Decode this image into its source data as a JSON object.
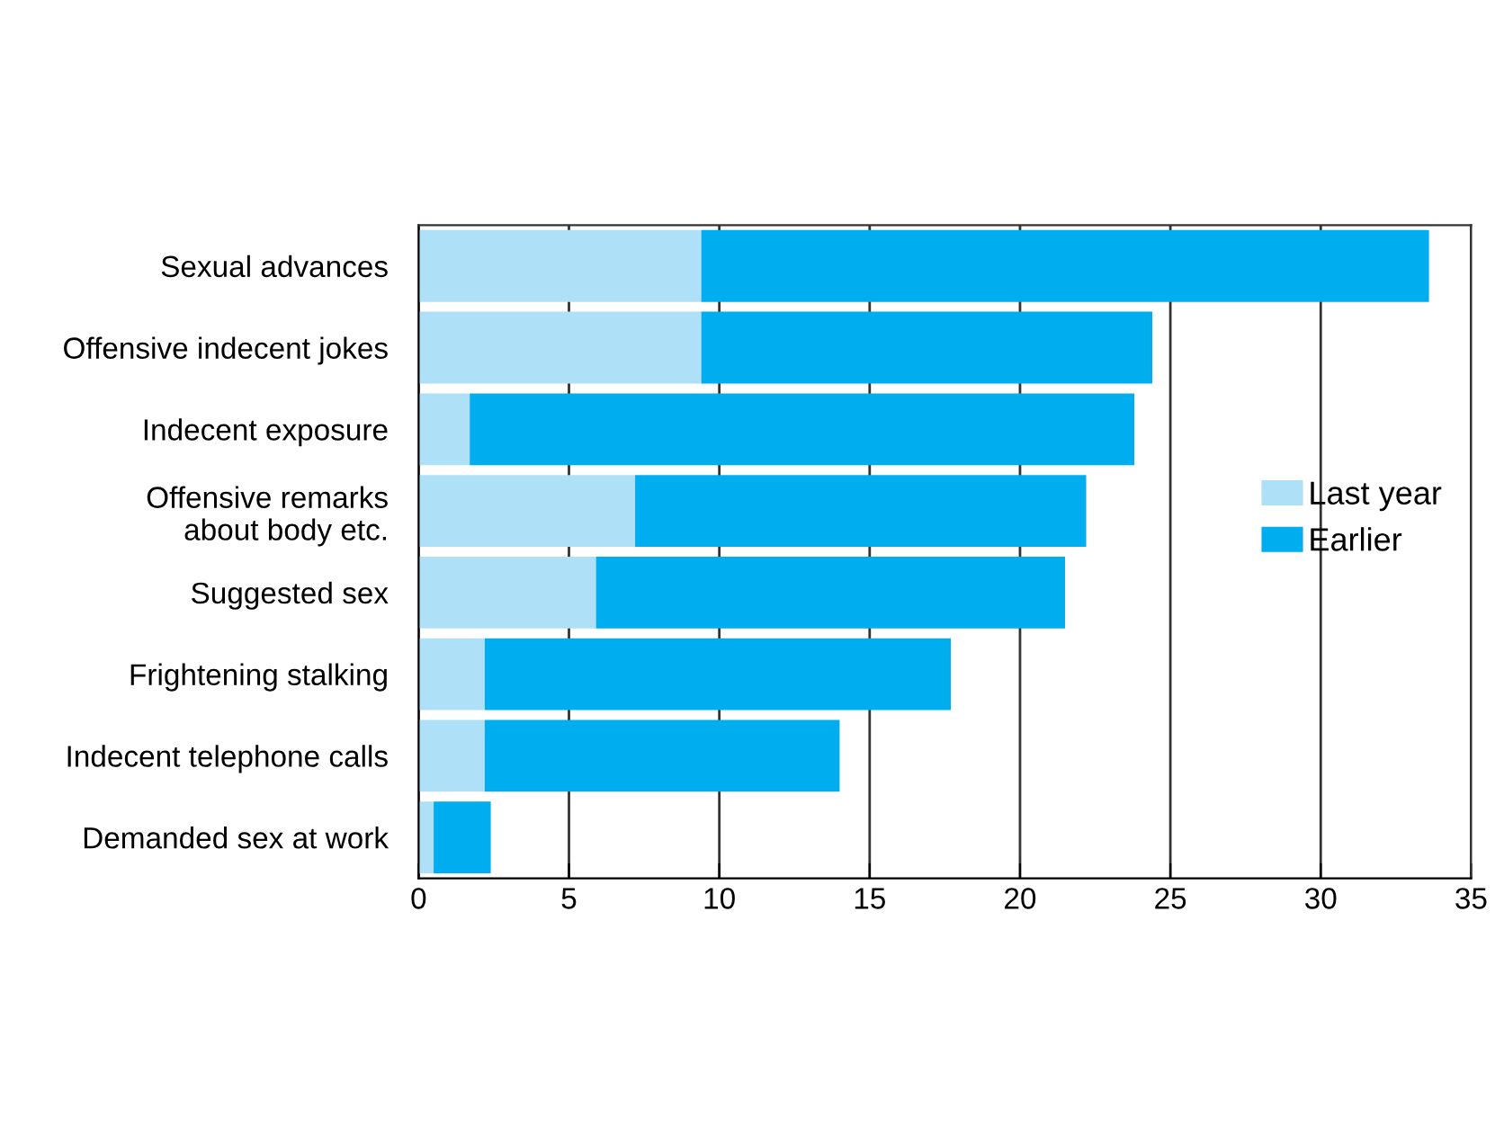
{
  "chart_data": {
    "type": "bar",
    "orientation": "horizontal",
    "stacked": true,
    "categories": [
      "Sexual advances",
      "Offensive indecent jokes",
      "Indecent exposure",
      "Offensive remarks\nabout body etc.",
      "Suggested sex",
      "Frightening stalking",
      "Indecent telephone calls",
      "Demanded sex at work"
    ],
    "series": [
      {
        "name": "Last year",
        "color": "#aee0f8",
        "values": [
          9.4,
          9.4,
          1.7,
          7.2,
          5.9,
          2.2,
          2.2,
          0.5
        ]
      },
      {
        "name": "Earlier",
        "color": "#00adef",
        "values": [
          24.2,
          15.0,
          22.1,
          15.0,
          15.6,
          15.5,
          11.8,
          1.9
        ]
      }
    ],
    "xlim": [
      0,
      35
    ],
    "xticks": [
      0,
      5,
      10,
      15,
      20,
      25,
      30,
      35
    ],
    "grid": "x",
    "legend": "right"
  }
}
